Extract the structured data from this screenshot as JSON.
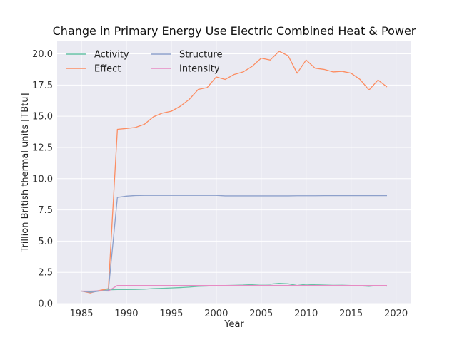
{
  "chart_data": {
    "type": "line",
    "title": "Change in Primary Energy Use Electric Combined Heat & Power",
    "xlabel": "Year",
    "ylabel": "Trillion British thermal units [TBtu]",
    "xlim": [
      1982.3,
      2021.7
    ],
    "ylim": [
      0.0,
      21.0
    ],
    "xticks": [
      1985,
      1990,
      1995,
      2000,
      2005,
      2010,
      2015,
      2020
    ],
    "yticks": [
      0.0,
      2.5,
      5.0,
      7.5,
      10.0,
      12.5,
      15.0,
      17.5,
      20.0
    ],
    "ytick_labels": [
      "0.0",
      "2.5",
      "5.0",
      "7.5",
      "10.0",
      "12.5",
      "15.0",
      "17.5",
      "20.0"
    ],
    "grid": true,
    "background": "#eaeaf2",
    "legend_position": "top-left",
    "x": [
      1985,
      1986,
      1987,
      1988,
      1989,
      1990,
      1991,
      1992,
      1993,
      1994,
      1995,
      1996,
      1997,
      1998,
      1999,
      2000,
      2001,
      2002,
      2003,
      2004,
      2005,
      2006,
      2007,
      2008,
      2009,
      2010,
      2011,
      2012,
      2013,
      2014,
      2015,
      2016,
      2017,
      2018,
      2019
    ],
    "series": [
      {
        "name": "Activity",
        "color": "#66c2a5",
        "values": [
          1.0,
          0.95,
          1.05,
          1.1,
          1.12,
          1.12,
          1.13,
          1.15,
          1.2,
          1.22,
          1.25,
          1.28,
          1.32,
          1.38,
          1.4,
          1.45,
          1.45,
          1.46,
          1.48,
          1.52,
          1.56,
          1.55,
          1.62,
          1.58,
          1.45,
          1.54,
          1.5,
          1.48,
          1.46,
          1.47,
          1.45,
          1.42,
          1.38,
          1.44,
          1.4
        ]
      },
      {
        "name": "Effect",
        "color": "#fc8d62",
        "values": [
          1.0,
          0.85,
          1.05,
          1.2,
          13.95,
          14.02,
          14.1,
          14.35,
          14.95,
          15.25,
          15.4,
          15.8,
          16.35,
          17.15,
          17.3,
          18.15,
          17.95,
          18.35,
          18.55,
          19.0,
          19.65,
          19.5,
          20.2,
          19.85,
          18.45,
          19.5,
          18.85,
          18.75,
          18.55,
          18.6,
          18.45,
          17.95,
          17.1,
          17.9,
          17.35
        ]
      },
      {
        "name": "Structure",
        "color": "#8da0cb",
        "values": [
          1.0,
          0.9,
          1.0,
          1.05,
          8.5,
          8.6,
          8.65,
          8.66,
          8.66,
          8.66,
          8.66,
          8.66,
          8.66,
          8.66,
          8.66,
          8.66,
          8.62,
          8.62,
          8.62,
          8.62,
          8.62,
          8.62,
          8.62,
          8.62,
          8.63,
          8.63,
          8.63,
          8.64,
          8.64,
          8.64,
          8.64,
          8.64,
          8.64,
          8.64,
          8.64
        ]
      },
      {
        "name": "Intensity",
        "color": "#e78ac3",
        "values": [
          1.0,
          1.0,
          1.02,
          1.0,
          1.45,
          1.45,
          1.45,
          1.45,
          1.45,
          1.45,
          1.45,
          1.45,
          1.45,
          1.45,
          1.45,
          1.45,
          1.45,
          1.45,
          1.45,
          1.45,
          1.45,
          1.45,
          1.45,
          1.45,
          1.45,
          1.45,
          1.45,
          1.45,
          1.45,
          1.45,
          1.45,
          1.45,
          1.45,
          1.45,
          1.45
        ]
      }
    ]
  }
}
